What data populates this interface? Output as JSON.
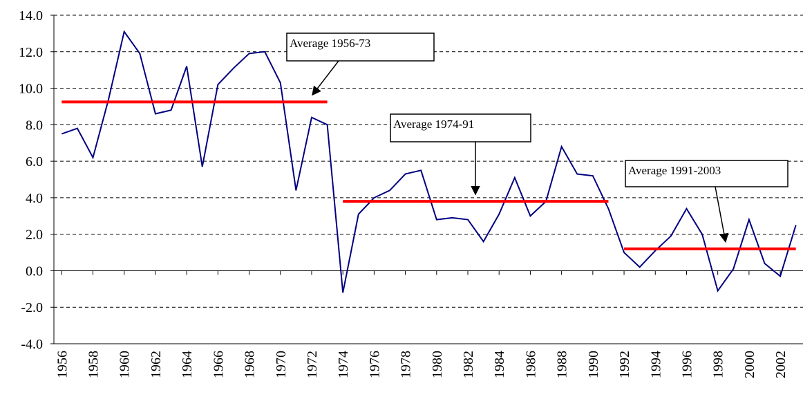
{
  "chart_data": {
    "type": "line",
    "x": [
      1956,
      1957,
      1958,
      1959,
      1960,
      1961,
      1962,
      1963,
      1964,
      1965,
      1966,
      1967,
      1968,
      1969,
      1970,
      1971,
      1972,
      1973,
      1974,
      1975,
      1976,
      1977,
      1978,
      1979,
      1980,
      1981,
      1982,
      1983,
      1984,
      1985,
      1986,
      1987,
      1988,
      1989,
      1990,
      1991,
      1992,
      1993,
      1994,
      1995,
      1996,
      1997,
      1998,
      1999,
      2000,
      2001,
      2002,
      2003
    ],
    "series": [
      {
        "color": "#000080",
        "values": [
          7.5,
          7.8,
          6.2,
          9.4,
          13.1,
          11.9,
          8.6,
          8.8,
          11.2,
          5.7,
          10.2,
          11.1,
          11.9,
          12.0,
          10.3,
          4.4,
          8.4,
          8.0,
          -1.2,
          3.1,
          4.0,
          4.4,
          5.3,
          5.5,
          2.8,
          2.9,
          2.8,
          1.6,
          3.1,
          5.1,
          3.0,
          3.8,
          6.8,
          5.3,
          5.2,
          3.4,
          1.0,
          0.2,
          1.1,
          1.9,
          3.4,
          2.0,
          -1.1,
          0.1,
          2.8,
          0.4,
          -0.3,
          2.5
        ]
      }
    ],
    "averages": [
      {
        "label": "Average 1956-73",
        "value": 9.25,
        "x": [
          1956,
          1973
        ],
        "color": "#ff0000"
      },
      {
        "label": "Average 1974-91",
        "value": 3.8,
        "x": [
          1974,
          1991
        ],
        "color": "#ff0000"
      },
      {
        "label": "Average 1991-2003",
        "value": 1.2,
        "x": [
          1992,
          2003
        ],
        "color": "#ff0000"
      }
    ],
    "xlim": [
      1955.5,
      2003.5
    ],
    "xticks": [
      1956,
      1958,
      1960,
      1962,
      1964,
      1966,
      1968,
      1970,
      1972,
      1974,
      1976,
      1978,
      1980,
      1982,
      1984,
      1986,
      1988,
      1990,
      1992,
      1994,
      1996,
      1998,
      2000,
      2002
    ],
    "ylim": [
      -4,
      14
    ],
    "yticks": [
      {
        "value": -4,
        "label": "-4.0"
      },
      {
        "value": -2,
        "label": "-2.0"
      },
      {
        "value": 0,
        "label": "0.0"
      },
      {
        "value": 2,
        "label": "2.0"
      },
      {
        "value": 4,
        "label": "4.0"
      },
      {
        "value": 6,
        "label": "6.0"
      },
      {
        "value": 8,
        "label": "8.0"
      },
      {
        "value": 10,
        "label": "10.0"
      },
      {
        "value": 12,
        "label": "12.0"
      },
      {
        "value": 14,
        "label": "14.0"
      }
    ],
    "grid": true
  }
}
